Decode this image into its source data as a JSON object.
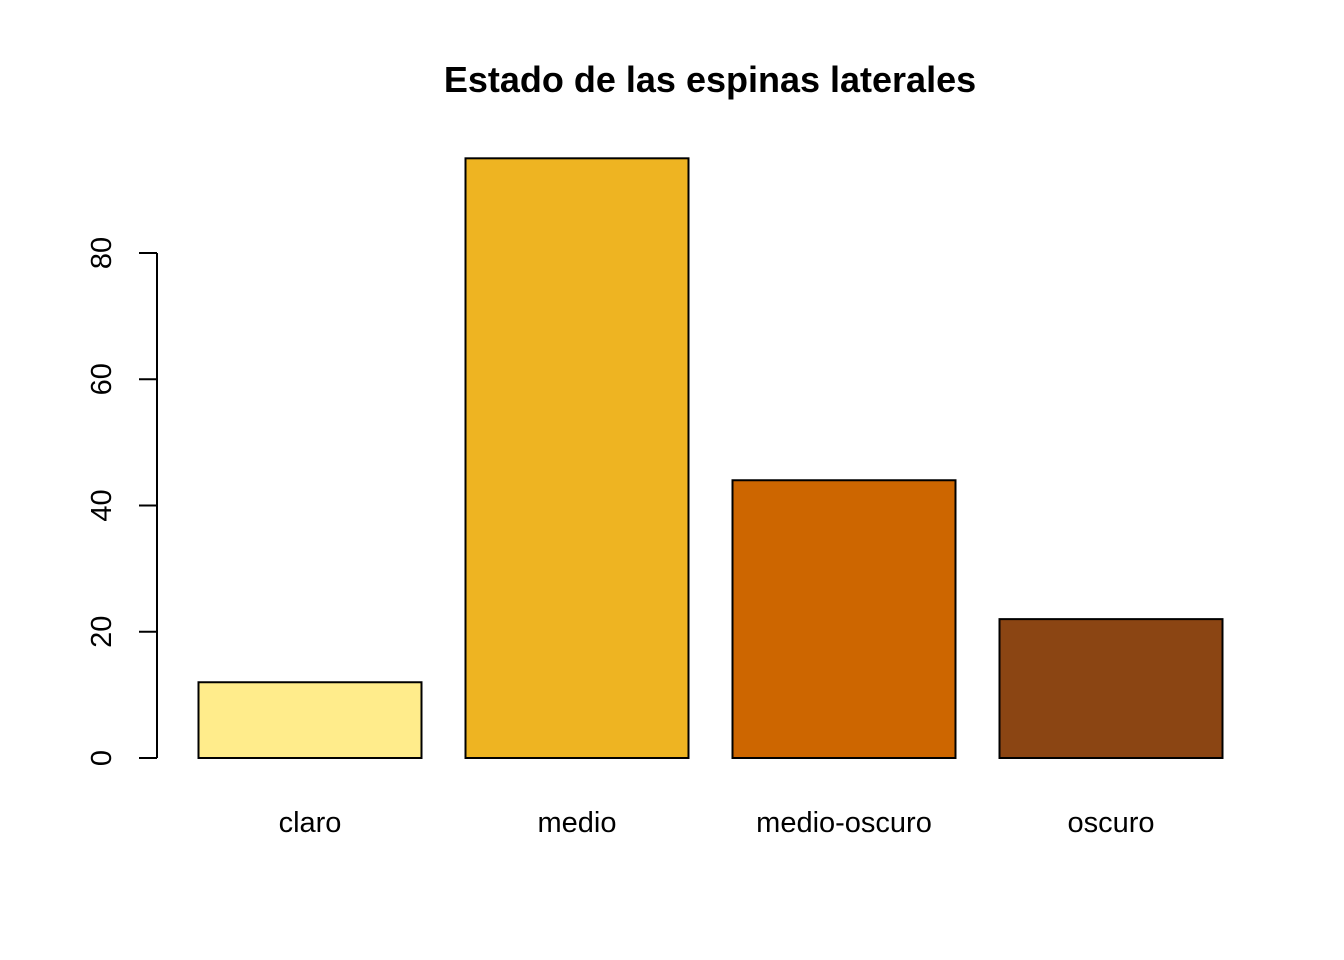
{
  "chart_data": {
    "type": "bar",
    "title": "Estado de las espinas laterales",
    "xlabel": "",
    "ylabel": "",
    "categories": [
      "claro",
      "medio",
      "medio-oscuro",
      "oscuro"
    ],
    "values": [
      12,
      95,
      44,
      22
    ],
    "colors": [
      "#FFEC8B",
      "#EEB422",
      "#CD6600",
      "#8B4513"
    ],
    "yticks": [
      0,
      20,
      40,
      60,
      80
    ],
    "ylim": [
      0,
      95
    ],
    "grid": false,
    "legend": "none"
  }
}
